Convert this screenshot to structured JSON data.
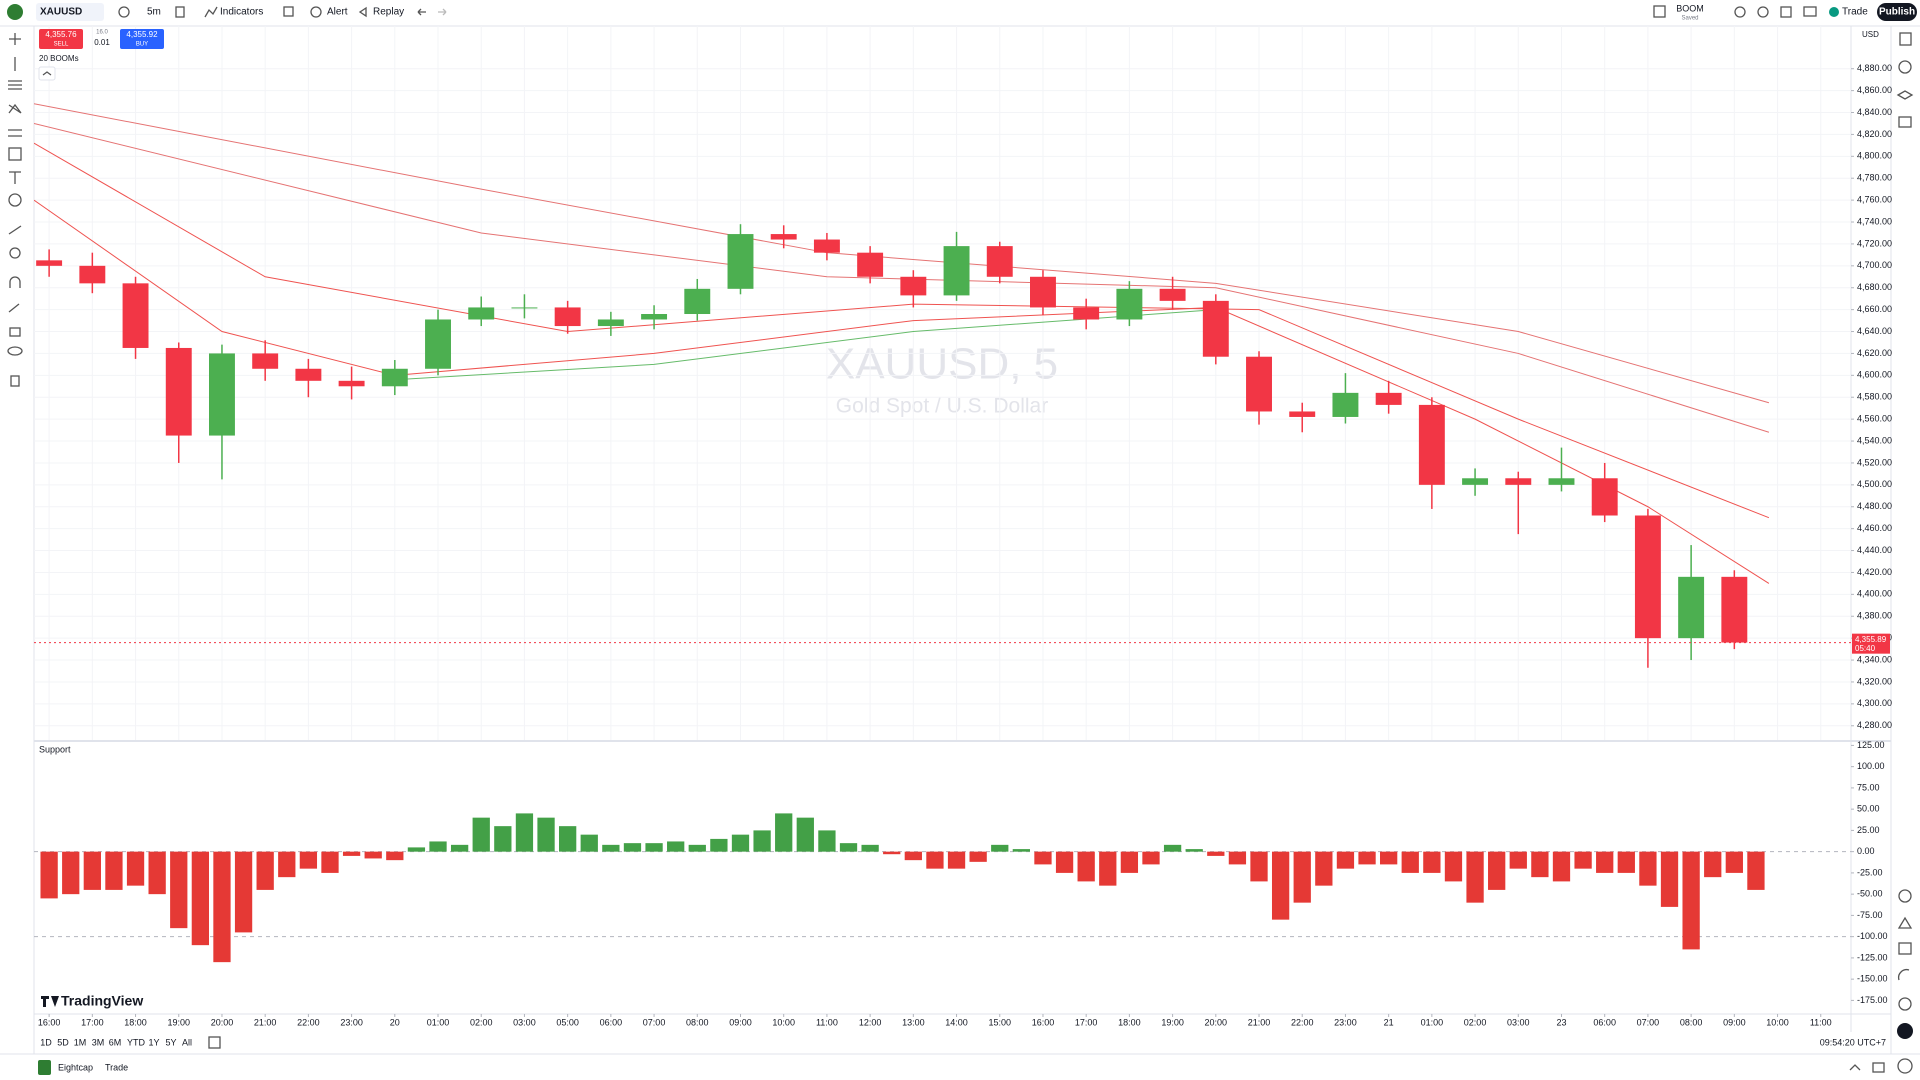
{
  "toolbar": {
    "symbol": "XAUUSD",
    "interval": "5m",
    "indicators": "Indicators",
    "alert": "Alert",
    "replay": "Replay",
    "layout_name": "BOOM",
    "layout_status": "Saved",
    "trade": "Trade",
    "publish": "Publish"
  },
  "order_panel": {
    "sell_price": "4,355.76",
    "sell": "SELL",
    "spread": "16.0",
    "quantity": "0.01",
    "buy_price": "4,355.92",
    "buy": "BUY"
  },
  "legend": "20 BOOMs",
  "branding": "TradingView",
  "range_buttons": [
    "1D",
    "5D",
    "1M",
    "3M",
    "6M",
    "YTD",
    "1Y",
    "5Y",
    "All"
  ],
  "clock": "09:54:20 UTC+7",
  "bottom_bar": {
    "broker": "Eightcap",
    "trade": "Trade"
  },
  "chart_data": [
    {
      "type": "candlestick",
      "watermark": "XAUUSD, 5",
      "watermark_subtitle": "Gold Spot / U.S. Dollar",
      "currency": "USD",
      "up_color": "#4caf50",
      "down_color": "#f23645",
      "x": [
        0,
        1,
        2,
        3,
        4,
        5,
        6,
        7,
        8,
        9,
        10,
        11,
        12,
        13,
        14,
        15,
        16,
        17,
        18,
        19,
        20,
        21,
        22,
        23,
        24,
        25,
        26,
        27,
        28,
        29,
        30,
        31,
        32,
        33,
        34,
        35,
        36,
        37,
        38,
        39
      ],
      "open": [
        4705,
        4700,
        4684,
        4625,
        4545,
        4620,
        4606,
        4595,
        4590,
        4606,
        4651,
        4662,
        4662,
        4645,
        4651,
        4656,
        4679,
        4729,
        4724,
        4712,
        4690,
        4673,
        4718,
        4690,
        4662,
        4651,
        4679,
        4668,
        4617,
        4567,
        4562,
        4584,
        4573,
        4500,
        4506,
        4500,
        4506,
        4472,
        4360,
        4416
      ],
      "high": [
        4715,
        4712,
        4690,
        4630,
        4628,
        4632,
        4615,
        4608,
        4614,
        4660,
        4672,
        4674,
        4668,
        4658,
        4664,
        4688,
        4738,
        4737,
        4730,
        4718,
        4696,
        4731,
        4722,
        4696,
        4670,
        4686,
        4690,
        4674,
        4622,
        4575,
        4602,
        4595,
        4580,
        4515,
        4512,
        4534,
        4520,
        4478,
        4445,
        4422
      ],
      "low": [
        4690,
        4675,
        4615,
        4520,
        4505,
        4595,
        4580,
        4578,
        4582,
        4600,
        4645,
        4652,
        4638,
        4636,
        4642,
        4650,
        4674,
        4716,
        4705,
        4684,
        4662,
        4668,
        4684,
        4655,
        4642,
        4645,
        4660,
        4610,
        4555,
        4548,
        4556,
        4565,
        4478,
        4490,
        4455,
        4494,
        4466,
        4333,
        4340,
        4350
      ],
      "close": [
        4700,
        4684,
        4625,
        4545,
        4620,
        4606,
        4595,
        4590,
        4606,
        4651,
        4662,
        4662,
        4645,
        4651,
        4656,
        4679,
        4729,
        4724,
        4712,
        4690,
        4673,
        4718,
        4690,
        4662,
        4651,
        4679,
        4668,
        4617,
        4567,
        4562,
        4584,
        4573,
        4500,
        4506,
        4500,
        4506,
        4472,
        4360,
        4416,
        4356
      ],
      "ma_lines": [
        {
          "color": "#e57373",
          "x": [
            -0.35,
            10,
            18,
            27,
            34,
            39.8
          ],
          "values": [
            4848,
            4770,
            4712,
            4684,
            4640,
            4575
          ]
        },
        {
          "color": "#e57373",
          "x": [
            -0.35,
            10,
            18,
            27,
            34,
            39.8
          ],
          "values": [
            4830,
            4730,
            4690,
            4680,
            4620,
            4548
          ]
        },
        {
          "color": "#ef5350",
          "x": [
            -0.35,
            5,
            12,
            20,
            28,
            34,
            39.8
          ],
          "values": [
            4812,
            4690,
            4640,
            4665,
            4660,
            4560,
            4470
          ]
        },
        {
          "color": "#ef5350",
          "x": [
            -0.35,
            4,
            8,
            14,
            20,
            27,
            33,
            37,
            39.8
          ],
          "values": [
            4760,
            4640,
            4600,
            4620,
            4650,
            4662,
            4560,
            4480,
            4410
          ]
        },
        {
          "color": "#66bb6a",
          "x": [
            8,
            14,
            20,
            27
          ],
          "values": [
            4596,
            4610,
            4640,
            4660
          ]
        }
      ],
      "last_price": {
        "value": 4355.89,
        "label": "4,355.89"
      },
      "countdown": "05:40",
      "xlim": [
        -0.35,
        41.7
      ],
      "xticks": [
        {
          "value": 0,
          "label": "16:00"
        },
        {
          "value": 1,
          "label": "17:00"
        },
        {
          "value": 2,
          "label": "18:00"
        },
        {
          "value": 3,
          "label": "19:00"
        },
        {
          "value": 4,
          "label": "20:00"
        },
        {
          "value": 5,
          "label": "21:00"
        },
        {
          "value": 6,
          "label": "22:00"
        },
        {
          "value": 7,
          "label": "23:00"
        },
        {
          "value": 8,
          "label": "20"
        },
        {
          "value": 9,
          "label": "01:00"
        },
        {
          "value": 10,
          "label": "02:00"
        },
        {
          "value": 11,
          "label": "03:00"
        },
        {
          "value": 12,
          "label": "05:00"
        },
        {
          "value": 13,
          "label": "06:00"
        },
        {
          "value": 14,
          "label": "07:00"
        },
        {
          "value": 15,
          "label": "08:00"
        },
        {
          "value": 16,
          "label": "09:00"
        },
        {
          "value": 17,
          "label": "10:00"
        },
        {
          "value": 18,
          "label": "11:00"
        },
        {
          "value": 19,
          "label": "12:00"
        },
        {
          "value": 20,
          "label": "13:00"
        },
        {
          "value": 21,
          "label": "14:00"
        },
        {
          "value": 22,
          "label": "15:00"
        },
        {
          "value": 23,
          "label": "16:00"
        },
        {
          "value": 24,
          "label": "17:00"
        },
        {
          "value": 25,
          "label": "18:00"
        },
        {
          "value": 26,
          "label": "19:00"
        },
        {
          "value": 27,
          "label": "20:00"
        },
        {
          "value": 28,
          "label": "21:00"
        },
        {
          "value": 29,
          "label": "22:00"
        },
        {
          "value": 30,
          "label": "23:00"
        },
        {
          "value": 31,
          "label": "21"
        },
        {
          "value": 32,
          "label": "01:00"
        },
        {
          "value": 33,
          "label": "02:00"
        },
        {
          "value": 34,
          "label": "03:00"
        },
        {
          "value": 35,
          "label": "23"
        },
        {
          "value": 36,
          "label": "06:00"
        },
        {
          "value": 37,
          "label": "07:00"
        },
        {
          "value": 38,
          "label": "08:00"
        },
        {
          "value": 39,
          "label": "09:00"
        },
        {
          "value": 40,
          "label": "10:00"
        },
        {
          "value": 41,
          "label": "11:00"
        }
      ],
      "ylim": [
        4267,
        4919
      ],
      "yticks": [
        {
          "value": 4280,
          "label": "4,280.00"
        },
        {
          "value": 4300,
          "label": "4,300.00"
        },
        {
          "value": 4320,
          "label": "4,320.00"
        },
        {
          "value": 4340,
          "label": "4,340.00"
        },
        {
          "value": 4360,
          "label": "4,360.00"
        },
        {
          "value": 4380,
          "label": "4,380.00"
        },
        {
          "value": 4400,
          "label": "4,400.00"
        },
        {
          "value": 4420,
          "label": "4,420.00"
        },
        {
          "value": 4440,
          "label": "4,440.00"
        },
        {
          "value": 4460,
          "label": "4,460.00"
        },
        {
          "value": 4480,
          "label": "4,480.00"
        },
        {
          "value": 4500,
          "label": "4,500.00"
        },
        {
          "value": 4520,
          "label": "4,520.00"
        },
        {
          "value": 4540,
          "label": "4,540.00"
        },
        {
          "value": 4560,
          "label": "4,560.00"
        },
        {
          "value": 4580,
          "label": "4,580.00"
        },
        {
          "value": 4600,
          "label": "4,600.00"
        },
        {
          "value": 4620,
          "label": "4,620.00"
        },
        {
          "value": 4640,
          "label": "4,640.00"
        },
        {
          "value": 4660,
          "label": "4,660.00"
        },
        {
          "value": 4680,
          "label": "4,680.00"
        },
        {
          "value": 4700,
          "label": "4,700.00"
        },
        {
          "value": 4720,
          "label": "4,720.00"
        },
        {
          "value": 4740,
          "label": "4,740.00"
        },
        {
          "value": 4760,
          "label": "4,760.00"
        },
        {
          "value": 4780,
          "label": "4,780.00"
        },
        {
          "value": 4800,
          "label": "4,800.00"
        },
        {
          "value": 4820,
          "label": "4,820.00"
        },
        {
          "value": 4840,
          "label": "4,840.00"
        },
        {
          "value": 4860,
          "label": "4,860.00"
        },
        {
          "value": 4880,
          "label": "4,880.00"
        }
      ],
      "grid": true
    },
    {
      "type": "histogram",
      "title": "Support",
      "pos_color": "#43a047",
      "neg_color": "#e53935",
      "x": [
        0,
        0.5,
        1,
        1.5,
        2,
        2.5,
        3,
        3.5,
        4,
        4.5,
        5,
        5.5,
        6,
        6.5,
        7,
        7.5,
        8,
        8.5,
        9,
        9.5,
        10,
        10.5,
        11,
        11.5,
        12,
        12.5,
        13,
        13.5,
        14,
        14.5,
        15,
        15.5,
        16,
        16.5,
        17,
        17.5,
        18,
        18.5,
        19,
        19.5,
        20,
        20.5,
        21,
        21.5,
        22,
        22.5,
        23,
        23.5,
        24,
        24.5,
        25,
        25.5,
        26,
        26.5,
        27,
        27.5,
        28,
        28.5,
        29,
        29.5,
        30,
        30.5,
        31,
        31.5,
        32,
        32.5,
        33,
        33.5,
        34,
        34.5,
        35,
        35.5,
        36,
        36.5,
        37,
        37.5,
        38,
        38.5,
        39,
        39.5
      ],
      "values": [
        -55,
        -50,
        -45,
        -45,
        -40,
        -50,
        -90,
        -110,
        -130,
        -95,
        -45,
        -30,
        -20,
        -25,
        -5,
        -8,
        -10,
        5,
        12,
        8,
        40,
        30,
        45,
        40,
        30,
        20,
        8,
        10,
        10,
        12,
        8,
        15,
        20,
        25,
        45,
        40,
        25,
        10,
        8,
        -3,
        -10,
        -20,
        -20,
        -12,
        8,
        3,
        -15,
        -25,
        -35,
        -40,
        -25,
        -15,
        8,
        3,
        -5,
        -15,
        -35,
        -80,
        -60,
        -40,
        -20,
        -15,
        -15,
        -25,
        -25,
        -35,
        -60,
        -45,
        -20,
        -30,
        -35,
        -20,
        -25,
        -25,
        -40,
        -65,
        -115,
        -30,
        -25,
        -45
      ],
      "ref_lines": [
        0,
        -100
      ],
      "xlim": [
        -0.35,
        41.7
      ],
      "ylim": [
        -191,
        129
      ],
      "yticks": [
        {
          "value": -175,
          "label": "-175.00"
        },
        {
          "value": -150,
          "label": "-150.00"
        },
        {
          "value": -125,
          "label": "-125.00"
        },
        {
          "value": -100,
          "label": "-100.00"
        },
        {
          "value": -75,
          "label": "-75.00"
        },
        {
          "value": -50,
          "label": "-50.00"
        },
        {
          "value": -25,
          "label": "-25.00"
        },
        {
          "value": 0,
          "label": "0.00"
        },
        {
          "value": 25,
          "label": "25.00"
        },
        {
          "value": 50,
          "label": "50.00"
        },
        {
          "value": 75,
          "label": "75.00"
        },
        {
          "value": 100,
          "label": "100.00"
        },
        {
          "value": 125,
          "label": "125.00"
        }
      ]
    }
  ]
}
